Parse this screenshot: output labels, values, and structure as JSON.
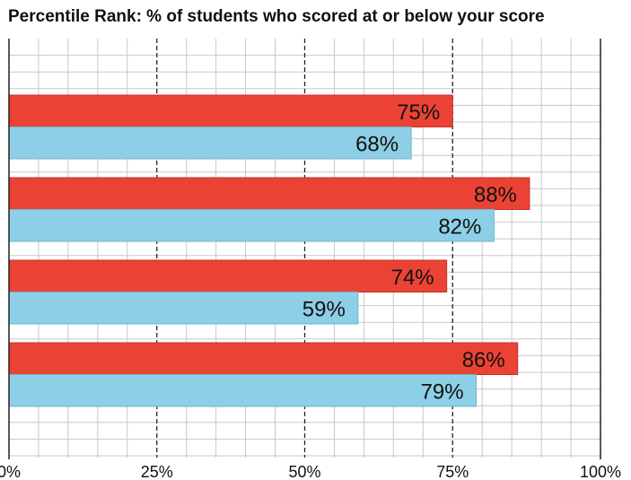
{
  "chart_data": {
    "type": "bar",
    "orientation": "horizontal",
    "title": "Percentile Rank: % of students who scored at or below your score",
    "xlabel": "",
    "ylabel": "",
    "xlim": [
      0,
      100
    ],
    "x_ticks": [
      0,
      25,
      50,
      75,
      100
    ],
    "x_tick_labels": [
      "0%",
      "25%",
      "50%",
      "75%",
      "100%"
    ],
    "grid": true,
    "legend": "none",
    "categories": [
      "",
      "",
      "",
      ""
    ],
    "series": [
      {
        "color": "#ea4335",
        "values": [
          75,
          88,
          74,
          86
        ],
        "labels": [
          "75%",
          "88%",
          "74%",
          "86%"
        ]
      },
      {
        "color": "#8dcfe6",
        "values": [
          68,
          82,
          59,
          79
        ],
        "labels": [
          "68%",
          "82%",
          "59%",
          "79%"
        ]
      }
    ]
  }
}
